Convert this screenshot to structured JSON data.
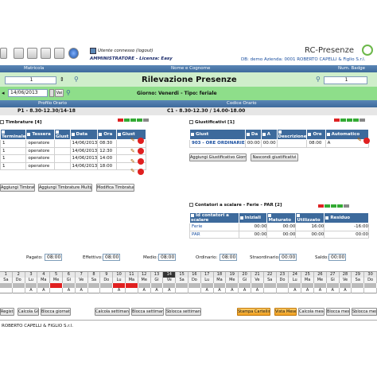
{
  "header": {
    "user_line": "Utente connesso (logout)",
    "user_name": "AMMINISTRATORE - Licenza: Easy",
    "app_title": "RC-Presenze",
    "db_info": "DB: demo  Azienda: 0001 ROBERTO CAPELLI & Figlio S.r.l."
  },
  "search_bar": {
    "matricola_label": "Matricola",
    "nome_label": "Nome e Cognome",
    "badge_label": "Num. Badge",
    "matricola_value": "1",
    "badge_value": "1",
    "page_title": "Rilevazione Presenze"
  },
  "date_bar": {
    "date_value": "14/06/2013",
    "go_label": "Vai",
    "day_info": "Giorno: Venerdi - Tipo: feriale"
  },
  "profile_bar": {
    "profilo_label": "Profilo Orario",
    "codice_label": "Codice Orario",
    "profilo_value": "P1 - 8.30-12.30/14-18",
    "codice_value": "C1 - 8.30-12.30 / 14.00-18.00"
  },
  "timbrature": {
    "title": "Timbrature [4]",
    "columns": [
      "Terminale",
      "Tessera",
      "Giust",
      "Data",
      "Ora",
      "Giust"
    ],
    "rows": [
      {
        "term": "1",
        "tess": "operatore",
        "giust": "",
        "data": "14/06/2013",
        "ora": "08:30"
      },
      {
        "term": "1",
        "tess": "operatore",
        "giust": "",
        "data": "14/06/2013",
        "ora": "12:30"
      },
      {
        "term": "1",
        "tess": "operatore",
        "giust": "",
        "data": "14/06/2013",
        "ora": "14:00"
      },
      {
        "term": "1",
        "tess": "operatore",
        "giust": "",
        "data": "14/06/2013",
        "ora": "18:00"
      }
    ],
    "buttons": [
      "Aggiungi Timbratura",
      "Aggiungi Timbrature Multiple",
      "Modifica Timbrature"
    ]
  },
  "giustificativi": {
    "title": "Giustificativi [1]",
    "columns": [
      "Giust",
      "Da",
      "A",
      "Descrizione",
      "Ore",
      "Automatico"
    ],
    "rows": [
      {
        "giust": "903 - ORE ORDINARIE",
        "da": "00:00",
        "a": "00:00",
        "desc": "",
        "ore": "08:00",
        "auto": "A"
      }
    ],
    "buttons": [
      "Aggiungi Giustificativo Giorno",
      "Nascondi giustificativi"
    ]
  },
  "contatori": {
    "title": "Contatori a scalare - Ferie - PAR [2]",
    "columns": [
      "Id contatori a scalare",
      "Iniziali",
      "Maturato",
      "Utilizzato",
      "Residuo"
    ],
    "rows": [
      {
        "id": "Ferie",
        "v1": "00:00",
        "v2": "00:00",
        "v3": "16:00",
        "v4": "-16:00"
      },
      {
        "id": "PAR",
        "v1": "00:00",
        "v2": "00:00",
        "v3": "00:00",
        "v4": "00:00"
      }
    ]
  },
  "summary": {
    "pagato_label": "Pagato:",
    "pagato_value": "08:00",
    "effettivo_label": "Effettivo:",
    "effettivo_value": "08:00",
    "medio_label": "Medio:",
    "medio_value": "08:00",
    "ordinario_label": "Ordinario:",
    "ordinario_value": "08:00",
    "straordinario_label": "Straordinario:",
    "straordinario_value": "00:00",
    "saldo_label": "Saldo:",
    "saldo_value": "00:00"
  },
  "calendar": {
    "days": [
      "1",
      "2",
      "3",
      "4",
      "5",
      "6",
      "7",
      "8",
      "9",
      "10",
      "11",
      "12",
      "13",
      "14",
      "15",
      "16",
      "17",
      "18",
      "19",
      "20",
      "21",
      "22",
      "23",
      "24",
      "25",
      "26",
      "27",
      "28",
      "29",
      "30"
    ],
    "weekdays": [
      "Sa",
      "Do",
      "Lu",
      "Ma",
      "Me",
      "Gi",
      "Ve",
      "Sa",
      "Do",
      "Lu",
      "Ma",
      "Me",
      "Gi",
      "Ve",
      "Sa",
      "Do",
      "Lu",
      "Ma",
      "Me",
      "Gi",
      "Ve",
      "Sa",
      "Do",
      "Lu",
      "Ma",
      "Me",
      "Gi",
      "Ve",
      "Sa",
      "Do"
    ],
    "status": [
      "",
      "",
      "A",
      "A",
      "",
      "A",
      "A",
      "",
      "",
      "A",
      "",
      "A",
      "A",
      "A",
      "",
      "",
      "A",
      "A",
      "A",
      "A",
      "A",
      "",
      "",
      "A",
      "A",
      "A",
      "A",
      "A",
      "",
      ""
    ],
    "red_days": [
      5,
      10,
      11
    ],
    "selected_day": 14
  },
  "bottom_buttons": {
    "registra": "Registra",
    "calcola_gg": "Calcola GG",
    "blocca_giornata": "Blocca giornata",
    "calcola_settimana": "Calcola settimana",
    "blocca_settimana": "Blocca settimana",
    "sblocca_settimana": "Sblocca settimana",
    "stampa_cartellino": "Stampa Cartellino",
    "vista_mese": "Vista Mese",
    "calcola_mese": "Calcola mese",
    "blocca_mese": "Blocca mese",
    "sblocca_mese": "Sblocca mese"
  },
  "footer": {
    "company": "ROBERTO CAPELLI & FIGLIO S.r.l."
  },
  "colors": {
    "header_blue": "#3d6a9c",
    "green_bar": "#cfeecb",
    "link_blue": "#1a4fa0",
    "red": "#e02020",
    "orange": "#f0a020"
  }
}
